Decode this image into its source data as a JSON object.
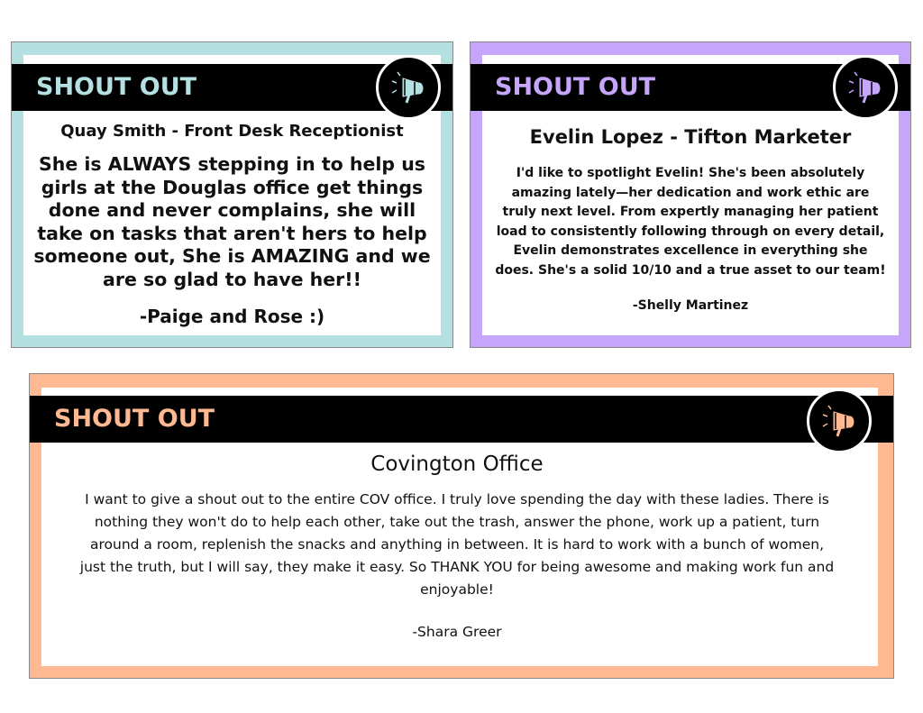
{
  "cards": [
    {
      "header": "SHOUT OUT",
      "icon": "megaphone-icon",
      "accent": "#b4e0e2",
      "recipient": "Quay Smith - Front Desk Receptionist",
      "message": "She is ALWAYS stepping in to help us girls at the Douglas office get things done and never complains, she will take on tasks that aren't hers to help someone out, She is AMAZING and we are so glad to have her!!",
      "signature": "-Paige and Rose :)"
    },
    {
      "header": "SHOUT OUT",
      "icon": "megaphone-icon",
      "accent": "#c6a6fb",
      "recipient": "Evelin Lopez - Tifton Marketer",
      "message": "I'd like to spotlight Evelin! She's been absolutely amazing lately—her dedication and work ethic are truly next level. From expertly managing her patient load to consistently following through on every detail, Evelin demonstrates excellence in everything she does. She's a solid 10/10 and a true asset to our team!",
      "signature": "-Shelly Martinez"
    },
    {
      "header": "SHOUT OUT",
      "icon": "megaphone-icon",
      "accent": "#ffb992",
      "recipient": "Covington Office",
      "message": "I want to give a shout out to the entire COV office. I truly love spending the day with these ladies. There is nothing they won't do to help each other, take out the trash, answer the phone, work up a patient, turn around a room, replenish the snacks and anything in between. It is hard to work with a bunch of women, just the truth, but I will say, they make it easy. So THANK YOU for being awesome and making work fun and enjoyable!",
      "signature": "-Shara Greer"
    }
  ]
}
